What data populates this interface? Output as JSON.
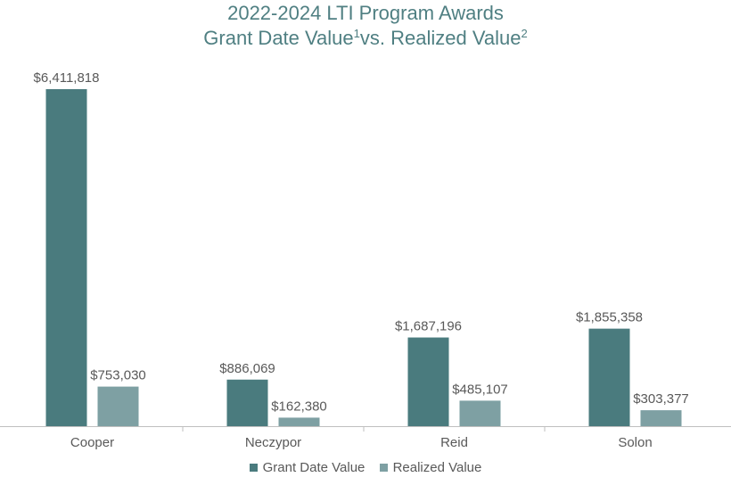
{
  "title": {
    "line1": "2022-2024 LTI Program Awards",
    "line2_part1": "Grant Date Value",
    "line2_sup1": "1",
    "line2_part2": "vs. Realized Value",
    "line2_sup2": "2"
  },
  "colors": {
    "grant": "#4a7b7e",
    "realized": "#7ea0a3",
    "title": "#4f7f82",
    "axis": "#bfbfbf",
    "label": "#595959"
  },
  "chart_data": {
    "type": "bar",
    "title": "2022-2024 LTI Program Awards Grant Date Value1 vs. Realized Value2",
    "categories": [
      "Cooper",
      "Neczypor",
      "Reid",
      "Solon"
    ],
    "series": [
      {
        "name": "Grant Date Value",
        "values": [
          6411818,
          886069,
          1687196,
          1855358
        ],
        "labels": [
          "$6,411,818",
          "$886,069",
          "$1,687,196",
          "$1,855,358"
        ]
      },
      {
        "name": "Realized Value",
        "values": [
          753030,
          162380,
          485107,
          303377
        ],
        "labels": [
          "$753,030",
          "$162,380",
          "$485,107",
          "$303,377"
        ]
      }
    ],
    "ylim": [
      0,
      6411818
    ],
    "xlabel": "",
    "ylabel": "",
    "grid": false,
    "legend": "bottom"
  }
}
